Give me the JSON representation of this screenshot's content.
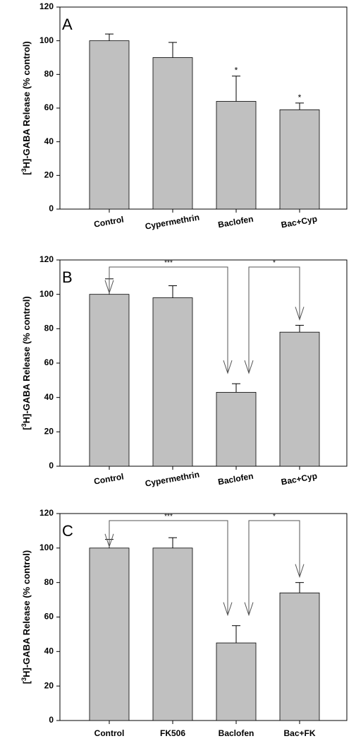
{
  "chart_data": [
    {
      "type": "bar",
      "panel_label": "A",
      "y_label": {
        "open": "[",
        "sup": "3",
        "rest": "H]-GABA Release (% control)"
      },
      "categories": [
        "Control",
        "Cypermethrin",
        "Baclofen",
        "Bac+Cyp"
      ],
      "values": [
        100,
        90,
        64,
        59
      ],
      "errors": [
        4,
        9,
        15,
        4
      ],
      "color": "#c0c0c0",
      "ylim": [
        0,
        120
      ],
      "yticks": [
        0,
        20,
        40,
        60,
        80,
        100,
        120
      ],
      "annotations": [
        "*",
        "*"
      ]
    },
    {
      "type": "bar",
      "panel_label": "B",
      "y_label": {
        "open": "[",
        "sup": "3",
        "rest": "H]-GABA Release (% control)"
      },
      "categories": [
        "Control",
        "Cypermethrin",
        "Baclofen",
        "Bac+Cyp"
      ],
      "values": [
        100,
        98,
        43,
        78
      ],
      "errors": [
        9,
        7,
        5,
        4
      ],
      "color": "#c0c0c0",
      "ylim": [
        0,
        120
      ],
      "yticks": [
        0,
        20,
        40,
        60,
        80,
        100,
        120
      ],
      "annotations": [
        "***",
        "*"
      ]
    },
    {
      "type": "bar",
      "panel_label": "C",
      "y_label": {
        "open": "[",
        "sup": "3",
        "rest": "H]-GABA Release (% control)"
      },
      "categories": [
        "Control",
        "FK506",
        "Baclofen",
        "Bac+FK"
      ],
      "values": [
        100,
        100,
        45,
        74
      ],
      "errors": [
        5,
        6,
        10,
        6
      ],
      "color": "#c0c0c0",
      "ylim": [
        0,
        120
      ],
      "yticks": [
        0,
        20,
        40,
        60,
        80,
        100,
        120
      ],
      "annotations": [
        "***",
        "*"
      ]
    }
  ]
}
